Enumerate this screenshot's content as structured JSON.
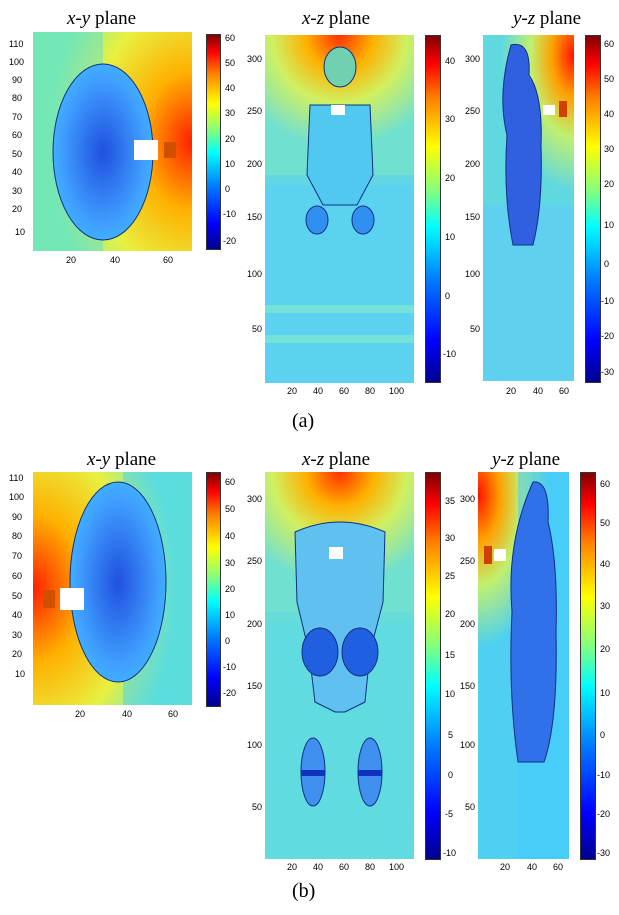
{
  "figure": {
    "row_a": {
      "label": "(a)",
      "panels": [
        {
          "title_axes": "x-y",
          "title_word": "plane",
          "yticks": [
            "110",
            "100",
            "90",
            "80",
            "70",
            "60",
            "50",
            "40",
            "30",
            "20",
            "10"
          ],
          "xticks": [
            "20",
            "40",
            "60"
          ],
          "cbar": [
            "60",
            "50",
            "40",
            "30",
            "20",
            "10",
            "0",
            "-10",
            "-20"
          ]
        },
        {
          "title_axes": "x-z",
          "title_word": "plane",
          "yticks": [
            "300",
            "250",
            "200",
            "150",
            "100",
            "50"
          ],
          "xticks": [
            "20",
            "40",
            "60",
            "80",
            "100"
          ],
          "cbar": [
            "40",
            "30",
            "20",
            "10",
            "0",
            "-10"
          ]
        },
        {
          "title_axes": "y-z",
          "title_word": "plane",
          "yticks": [
            "300",
            "250",
            "200",
            "150",
            "100",
            "50"
          ],
          "xticks": [
            "20",
            "40",
            "60"
          ],
          "cbar": [
            "60",
            "50",
            "40",
            "30",
            "20",
            "10",
            "0",
            "-10",
            "-20",
            "-30"
          ]
        }
      ]
    },
    "row_b": {
      "label": "(b)",
      "panels": [
        {
          "title_axes": "x-y",
          "title_word": "plane",
          "yticks": [
            "110",
            "100",
            "90",
            "80",
            "70",
            "60",
            "50",
            "40",
            "30",
            "20",
            "10"
          ],
          "xticks": [
            "20",
            "40",
            "60"
          ],
          "cbar": [
            "60",
            "50",
            "40",
            "30",
            "20",
            "10",
            "0",
            "-10",
            "-20"
          ]
        },
        {
          "title_axes": "x-z",
          "title_word": "plane",
          "yticks": [
            "300",
            "250",
            "200",
            "150",
            "100",
            "50"
          ],
          "xticks": [
            "20",
            "40",
            "60",
            "80",
            "100"
          ],
          "cbar": [
            "35",
            "30",
            "25",
            "20",
            "15",
            "10",
            "5",
            "0",
            "-5",
            "-10"
          ]
        },
        {
          "title_axes": "y-z",
          "title_word": "plane",
          "yticks": [
            "300",
            "250",
            "200",
            "150",
            "100",
            "50"
          ],
          "xticks": [
            "20",
            "40",
            "60"
          ],
          "cbar": [
            "60",
            "50",
            "40",
            "30",
            "20",
            "10",
            "0",
            "-10",
            "-20",
            "-30"
          ]
        }
      ]
    }
  },
  "colors": {
    "hot": "#ff3000",
    "warm": "#ffd040",
    "mid": "#7fffa0",
    "cool": "#50d8ff",
    "cold": "#1040e0"
  }
}
